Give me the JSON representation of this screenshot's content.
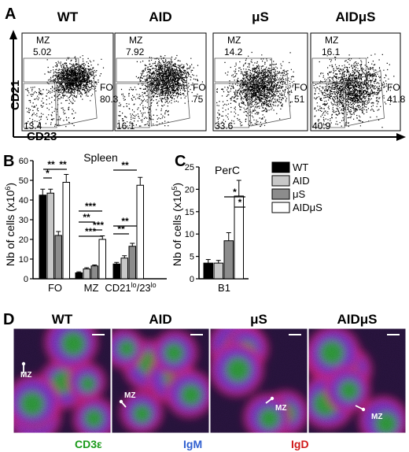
{
  "panels": {
    "a": "A",
    "b": "B",
    "c": "C",
    "d": "D"
  },
  "genotypes": [
    "WT",
    "AID",
    "μS",
    "AIDμS"
  ],
  "flow": {
    "y_label": "CD21",
    "x_label": "CD23",
    "plots": [
      {
        "mz_label": "MZ",
        "mz": "5.02",
        "fo_label": "FO",
        "fo": "80.3",
        "ll": "13.4"
      },
      {
        "mz_label": "MZ",
        "mz": "7.92",
        "fo_label": "FO",
        "fo": "75",
        "ll": "16.1"
      },
      {
        "mz_label": "MZ",
        "mz": "14.2",
        "fo_label": "FO",
        "fo": "51",
        "ll": "33.6"
      },
      {
        "mz_label": "MZ",
        "mz": "16.1",
        "fo_label": "FO",
        "fo": "41.8",
        "ll": "40.9"
      }
    ]
  },
  "colors": {
    "WT": "#000000",
    "AID": "#c8c8c8",
    "μS": "#8c8c8c",
    "AIDμS": "#ffffff"
  },
  "chart_data": [
    {
      "type": "bar",
      "title": "Spleen",
      "categories": [
        "FO",
        "MZ",
        "CD21lo/23lo"
      ],
      "category_labels": {
        "fo": "FO",
        "mz": "MZ",
        "cd21": "CD21",
        "lo1": "lo",
        "slash": "/23",
        "lo2": "lo"
      },
      "ylabel": "Nb of cells (x10",
      "ylabel_exp": "6",
      "ylabel_close": ")",
      "ylim": [
        0,
        60
      ],
      "yticks": [
        "0",
        "10",
        "20",
        "30",
        "40",
        "50",
        "60"
      ],
      "series": [
        {
          "name": "WT",
          "values": [
            42.5,
            3.0,
            7.5
          ],
          "errors": [
            3,
            0.5,
            0.8
          ]
        },
        {
          "name": "AID",
          "values": [
            43.5,
            5.0,
            10.5
          ],
          "errors": [
            2,
            0.6,
            1.2
          ]
        },
        {
          "name": "μS",
          "values": [
            22.0,
            6.5,
            16.5
          ],
          "errors": [
            2,
            0.5,
            1.5
          ]
        },
        {
          "name": "AIDμS",
          "values": [
            49.0,
            20.0,
            47.5
          ],
          "errors": [
            4,
            1.8,
            4
          ]
        }
      ],
      "significance": [
        "**",
        "*",
        "**",
        "***",
        "**",
        "***",
        "***",
        "**",
        "**",
        "**"
      ]
    },
    {
      "type": "bar",
      "title": "PerC",
      "categories": [
        "B1"
      ],
      "ylabel": "Nb of cells (x10",
      "ylabel_exp": "5",
      "ylabel_close": ")",
      "ylim": [
        0,
        25
      ],
      "yticks": [
        "0",
        "5",
        "10",
        "15",
        "20",
        "25"
      ],
      "series": [
        {
          "name": "WT",
          "values": [
            3.5
          ],
          "errors": [
            0.8
          ]
        },
        {
          "name": "AID",
          "values": [
            3.5
          ],
          "errors": [
            0.6
          ]
        },
        {
          "name": "μS",
          "values": [
            8.5
          ],
          "errors": [
            1.8
          ]
        },
        {
          "name": "AIDμS",
          "values": [
            18.5
          ],
          "errors": [
            3.5
          ]
        }
      ],
      "significance": [
        "*",
        "*"
      ]
    }
  ],
  "legend": [
    "WT",
    "AID",
    "μS",
    "AIDμS"
  ],
  "histology": {
    "mz_label": "MZ",
    "stains": [
      {
        "text": "CD3ε",
        "color": "#1a9a1a"
      },
      {
        "text": "IgM",
        "color": "#2f5fd0"
      },
      {
        "text": "IgD",
        "color": "#d01a1a"
      }
    ]
  }
}
